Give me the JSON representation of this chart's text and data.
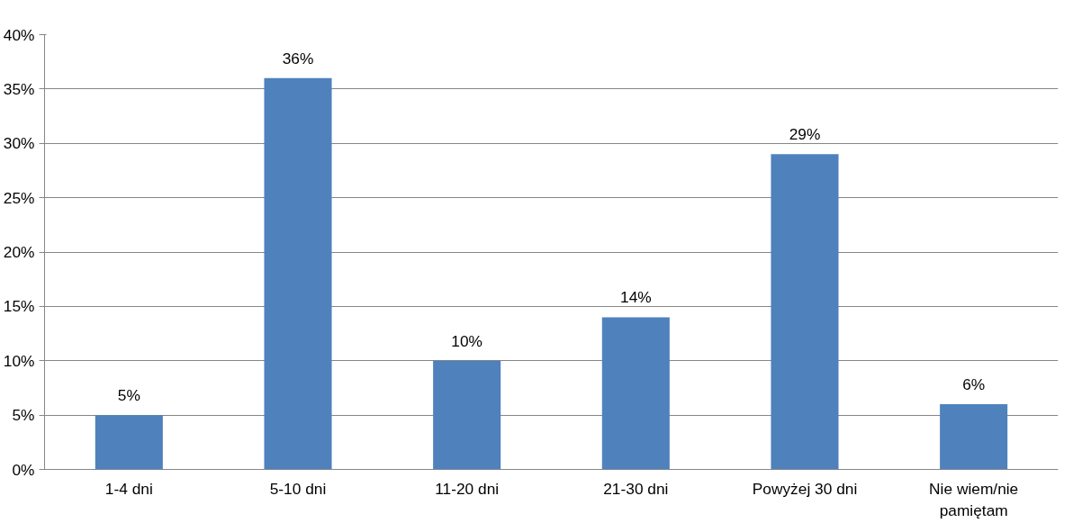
{
  "chart_data": {
    "type": "bar",
    "categories": [
      "1-4 dni",
      "5-10 dni",
      "11-20 dni",
      "21-30 dni",
      "Powyżej 30 dni",
      "Nie wiem/nie pamiętam"
    ],
    "values": [
      5,
      36,
      10,
      14,
      29,
      6
    ],
    "color": "#4f81bd",
    "ylim": [
      0,
      40
    ],
    "yticks": [
      {
        "value": 0,
        "label": "0%"
      },
      {
        "value": 5,
        "label": "5%"
      },
      {
        "value": 10,
        "label": "10%"
      },
      {
        "value": 15,
        "label": "15%"
      },
      {
        "value": 20,
        "label": "20%"
      },
      {
        "value": 25,
        "label": "25%"
      },
      {
        "value": 30,
        "label": "30%"
      },
      {
        "value": 35,
        "label": "35%"
      },
      {
        "value": 40,
        "label": "40%"
      }
    ],
    "value_labels": [
      "5%",
      "36%",
      "10%",
      "14%",
      "29%",
      "6%"
    ],
    "grid": "y"
  }
}
